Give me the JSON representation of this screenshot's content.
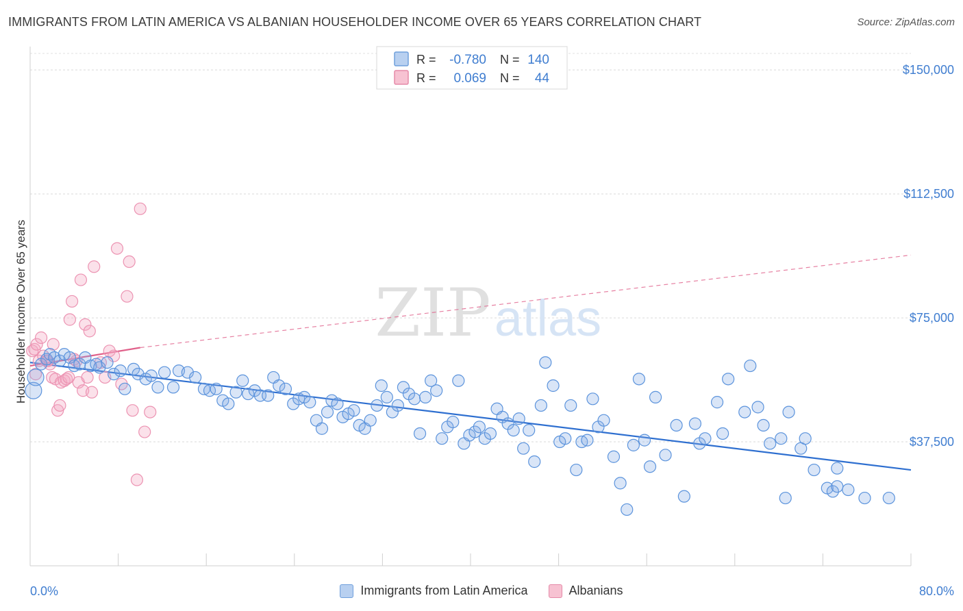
{
  "title": "IMMIGRANTS FROM LATIN AMERICA VS ALBANIAN HOUSEHOLDER INCOME OVER 65 YEARS CORRELATION CHART",
  "source": "Source: ZipAtlas.com",
  "watermark": {
    "zip": "ZIP",
    "atlas": "atlas"
  },
  "colors": {
    "blue": "#4f8bd8",
    "blue_line": "#2e6fd0",
    "pink": "#ee8fb0",
    "pink_line": "#e0608a",
    "axis_text": "#3f7dd0"
  },
  "legend_top": [
    {
      "r_label": "R =",
      "r_value": "-0.780",
      "n_label": "N =",
      "n_value": "140"
    },
    {
      "r_label": "R =",
      "r_value": "0.069",
      "n_label": "N =",
      "n_value": "44"
    }
  ],
  "chart_data": {
    "type": "scatter",
    "xlabel": "",
    "ylabel": "Householder Income Over 65 years",
    "xlim": [
      0,
      80
    ],
    "ylim": [
      0,
      155000
    ],
    "x_tick_labels": [
      "0.0%",
      "80.0%"
    ],
    "y_ticks": [
      37500,
      75000,
      112500,
      150000
    ],
    "y_tick_labels": [
      "$37,500",
      "$75,000",
      "$112,500",
      "$150,000"
    ],
    "grid": true,
    "legend_position": "bottom",
    "series": [
      {
        "name": "Immigrants from Latin America",
        "r": -0.78,
        "n": 140,
        "trend": {
          "x": [
            0,
            80
          ],
          "y": [
            61500,
            29000
          ]
        },
        "points": [
          [
            0.3,
            53000
          ],
          [
            0.5,
            57000
          ],
          [
            1.0,
            61000
          ],
          [
            1.5,
            62500
          ],
          [
            1.8,
            64000
          ],
          [
            2.2,
            63000
          ],
          [
            2.7,
            62000
          ],
          [
            3.1,
            64000
          ],
          [
            3.6,
            63000
          ],
          [
            4.0,
            60500
          ],
          [
            4.5,
            61000
          ],
          [
            5.0,
            63000
          ],
          [
            5.5,
            60500
          ],
          [
            6.0,
            61000
          ],
          [
            6.3,
            60000
          ],
          [
            7.0,
            61500
          ],
          [
            7.6,
            58000
          ],
          [
            8.2,
            59000
          ],
          [
            8.6,
            53500
          ],
          [
            9.4,
            59500
          ],
          [
            9.8,
            58000
          ],
          [
            10.5,
            56500
          ],
          [
            11.0,
            57500
          ],
          [
            11.6,
            54000
          ],
          [
            12.2,
            58500
          ],
          [
            13.0,
            54000
          ],
          [
            13.5,
            59000
          ],
          [
            14.3,
            58500
          ],
          [
            15.0,
            57000
          ],
          [
            15.8,
            53500
          ],
          [
            16.3,
            53000
          ],
          [
            16.9,
            53500
          ],
          [
            17.5,
            50000
          ],
          [
            18.0,
            49000
          ],
          [
            18.7,
            52500
          ],
          [
            19.3,
            56000
          ],
          [
            19.8,
            52000
          ],
          [
            20.4,
            53000
          ],
          [
            20.9,
            51500
          ],
          [
            21.6,
            51500
          ],
          [
            22.1,
            57000
          ],
          [
            22.6,
            54500
          ],
          [
            23.2,
            53500
          ],
          [
            23.9,
            49000
          ],
          [
            24.4,
            50500
          ],
          [
            24.9,
            51000
          ],
          [
            25.4,
            49500
          ],
          [
            26.0,
            44000
          ],
          [
            26.5,
            41500
          ],
          [
            27.0,
            46500
          ],
          [
            27.4,
            50000
          ],
          [
            27.9,
            49000
          ],
          [
            28.4,
            45000
          ],
          [
            28.9,
            46000
          ],
          [
            29.4,
            47000
          ],
          [
            29.9,
            42500
          ],
          [
            30.4,
            41500
          ],
          [
            30.9,
            44000
          ],
          [
            31.5,
            48500
          ],
          [
            31.9,
            54500
          ],
          [
            32.4,
            51000
          ],
          [
            32.9,
            46500
          ],
          [
            33.4,
            48500
          ],
          [
            33.9,
            54000
          ],
          [
            34.4,
            52000
          ],
          [
            34.9,
            50500
          ],
          [
            35.4,
            40000
          ],
          [
            35.9,
            51000
          ],
          [
            36.4,
            56000
          ],
          [
            36.9,
            53000
          ],
          [
            37.4,
            38500
          ],
          [
            37.9,
            42000
          ],
          [
            38.4,
            43500
          ],
          [
            38.9,
            56000
          ],
          [
            39.4,
            37000
          ],
          [
            39.9,
            39500
          ],
          [
            40.4,
            40500
          ],
          [
            40.8,
            42000
          ],
          [
            41.3,
            38500
          ],
          [
            41.8,
            40000
          ],
          [
            42.4,
            47500
          ],
          [
            42.9,
            45000
          ],
          [
            43.4,
            43000
          ],
          [
            43.9,
            41000
          ],
          [
            44.4,
            44500
          ],
          [
            44.8,
            35500
          ],
          [
            45.3,
            41000
          ],
          [
            45.8,
            31500
          ],
          [
            46.4,
            48500
          ],
          [
            46.8,
            61500
          ],
          [
            47.5,
            54500
          ],
          [
            48.1,
            37500
          ],
          [
            48.6,
            38500
          ],
          [
            49.1,
            48500
          ],
          [
            49.6,
            29000
          ],
          [
            50.1,
            37500
          ],
          [
            50.6,
            38000
          ],
          [
            51.1,
            50500
          ],
          [
            51.6,
            42000
          ],
          [
            52.1,
            44000
          ],
          [
            53.0,
            33000
          ],
          [
            53.6,
            25000
          ],
          [
            54.2,
            17000
          ],
          [
            54.8,
            36500
          ],
          [
            55.3,
            56500
          ],
          [
            55.8,
            38000
          ],
          [
            56.3,
            30000
          ],
          [
            56.8,
            51000
          ],
          [
            57.7,
            33500
          ],
          [
            58.7,
            42500
          ],
          [
            59.4,
            21000
          ],
          [
            60.4,
            43000
          ],
          [
            60.8,
            37000
          ],
          [
            61.3,
            38500
          ],
          [
            62.4,
            49500
          ],
          [
            62.9,
            40000
          ],
          [
            63.4,
            56500
          ],
          [
            64.9,
            46500
          ],
          [
            65.4,
            60500
          ],
          [
            66.1,
            48000
          ],
          [
            66.6,
            42500
          ],
          [
            67.2,
            37000
          ],
          [
            68.2,
            38500
          ],
          [
            68.6,
            20500
          ],
          [
            68.9,
            46500
          ],
          [
            70.0,
            35500
          ],
          [
            70.4,
            38500
          ],
          [
            71.2,
            29000
          ],
          [
            72.4,
            23500
          ],
          [
            72.9,
            22500
          ],
          [
            73.3,
            29500
          ],
          [
            73.3,
            24000
          ],
          [
            74.3,
            23000
          ],
          [
            75.8,
            20500
          ],
          [
            78.0,
            20500
          ]
        ]
      },
      {
        "name": "Albanians",
        "r": 0.069,
        "n": 44,
        "trend": {
          "x": [
            0,
            10
          ],
          "y": [
            60500,
            66000
          ]
        },
        "trend_extended": {
          "x": [
            10,
            80
          ],
          "y": [
            66000,
            94000
          ]
        },
        "points": [
          [
            0.2,
            65000
          ],
          [
            0.4,
            65500
          ],
          [
            0.6,
            67000
          ],
          [
            0.8,
            62000
          ],
          [
            1.0,
            69000
          ],
          [
            1.2,
            63500
          ],
          [
            1.5,
            62000
          ],
          [
            1.8,
            61000
          ],
          [
            2.0,
            57000
          ],
          [
            2.1,
            67000
          ],
          [
            2.3,
            56500
          ],
          [
            2.5,
            47000
          ],
          [
            2.7,
            48500
          ],
          [
            2.8,
            55500
          ],
          [
            3.1,
            56000
          ],
          [
            3.3,
            56500
          ],
          [
            3.5,
            57000
          ],
          [
            3.6,
            74500
          ],
          [
            3.8,
            80000
          ],
          [
            4.0,
            62500
          ],
          [
            4.2,
            62000
          ],
          [
            4.4,
            55500
          ],
          [
            4.6,
            86500
          ],
          [
            4.8,
            53000
          ],
          [
            5.0,
            73000
          ],
          [
            5.2,
            57000
          ],
          [
            5.4,
            71000
          ],
          [
            5.6,
            52500
          ],
          [
            5.8,
            90500
          ],
          [
            6.4,
            61500
          ],
          [
            6.8,
            57000
          ],
          [
            7.2,
            65000
          ],
          [
            7.6,
            63500
          ],
          [
            7.9,
            96000
          ],
          [
            8.3,
            55000
          ],
          [
            8.8,
            81500
          ],
          [
            9.0,
            92000
          ],
          [
            9.3,
            47000
          ],
          [
            9.7,
            26000
          ],
          [
            10.0,
            108000
          ],
          [
            10.4,
            40500
          ],
          [
            10.9,
            46500
          ],
          [
            0.5,
            58000
          ],
          [
            1.6,
            62000
          ]
        ]
      }
    ]
  }
}
